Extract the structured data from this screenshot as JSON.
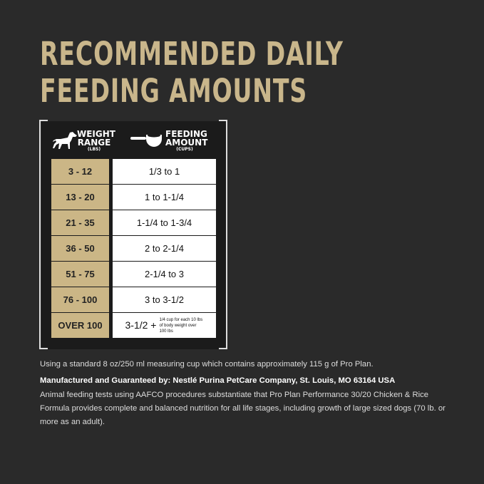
{
  "title": {
    "line1": "RECOMMENDED DAILY",
    "line2": "FEEDING AMOUNTS"
  },
  "table": {
    "weight_header": "WEIGHT RANGE",
    "weight_unit": "(LBS)",
    "feeding_header": "FEEDING AMOUNT",
    "feeding_unit": "(CUPS)",
    "rows": [
      {
        "weight": "3 - 12",
        "amount": "1/3 to 1"
      },
      {
        "weight": "13 - 20",
        "amount": "1 to 1-1/4"
      },
      {
        "weight": "21 - 35",
        "amount": "1-1/4 to 1-3/4"
      },
      {
        "weight": "36 - 50",
        "amount": "2 to 2-1/4"
      },
      {
        "weight": "51 - 75",
        "amount": "2-1/4 to 3"
      },
      {
        "weight": "76 - 100",
        "amount": "3 to 3-1/2"
      },
      {
        "weight": "OVER 100",
        "amount": "3-1/2 +",
        "note": "1/4 cup for each 10 lbs of body weight over 100 lbs"
      }
    ]
  },
  "notes": {
    "cup": "Using a standard 8 oz/250 ml measuring cup which contains approximately 115 g of Pro Plan.",
    "manufacturer": "Manufactured and Guaranteed by: Nestlé Purina PetCare Company, St. Louis, MO 63164 USA",
    "aafco": "Animal feeding tests using AAFCO procedures substantiate that Pro Plan Performance 30/20 Chicken & Rice Formula provides complete and balanced nutrition for all life stages, including growth of large sized dogs (70 lb. or more as an adult)."
  },
  "colors": {
    "gold": "#cbb686",
    "background": "#2a2a2a"
  }
}
